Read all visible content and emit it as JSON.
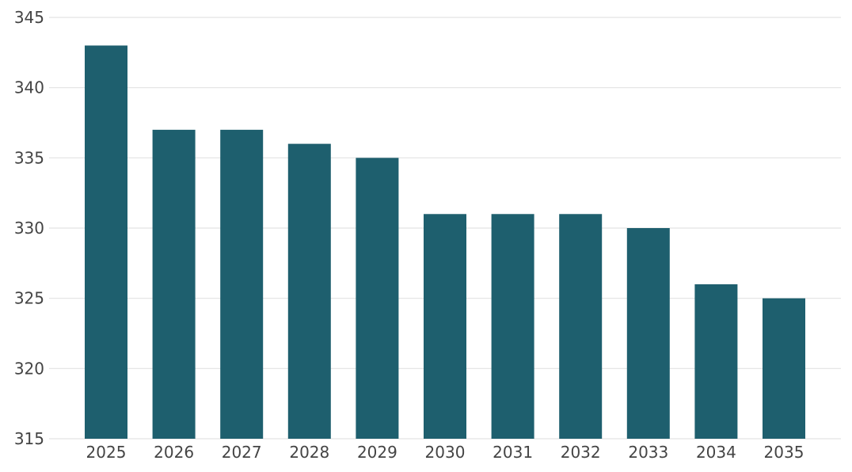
{
  "chart_data": {
    "type": "bar",
    "categories": [
      "2025",
      "2026",
      "2027",
      "2028",
      "2029",
      "2030",
      "2031",
      "2032",
      "2033",
      "2034",
      "2035"
    ],
    "values": [
      343,
      337,
      337,
      336,
      335,
      331,
      331,
      331,
      330,
      326,
      325
    ],
    "title": "",
    "xlabel": "",
    "ylabel": "",
    "ylim": [
      315,
      345
    ],
    "yticks": [
      "315",
      "320",
      "325",
      "330",
      "335",
      "340",
      "345"
    ],
    "grid": true,
    "legend": "none",
    "bar_color": "#1e5f6e",
    "grid_color": "#e3e3e3",
    "text_color": "#444444"
  }
}
